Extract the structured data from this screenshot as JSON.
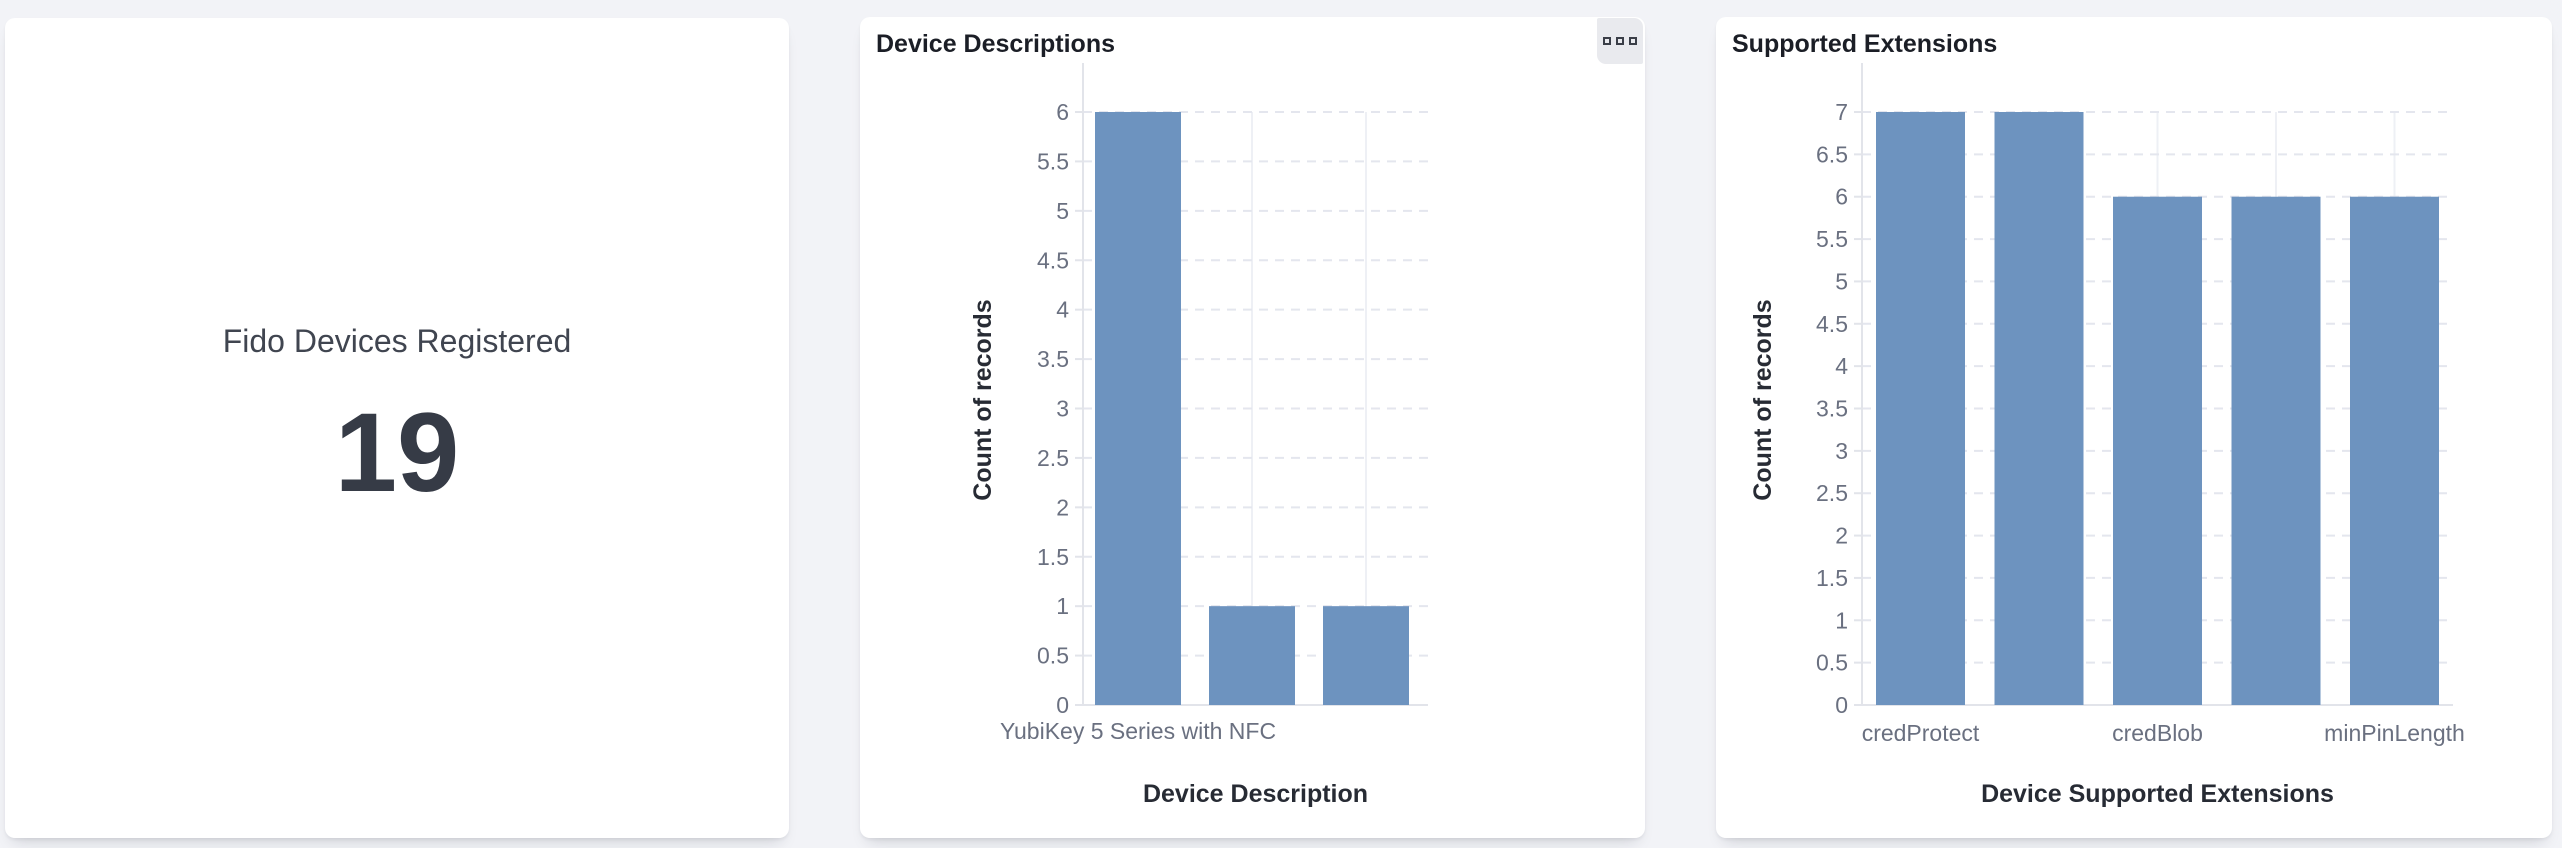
{
  "page": {
    "background_color": "#f2f3f7",
    "card_color": "#ffffff"
  },
  "kpi": {
    "label": "Fido Devices Registered",
    "value": "19"
  },
  "chart_data": [
    {
      "type": "bar",
      "title": "Device Descriptions",
      "categories": [
        "YubiKey 5 Series with NFC",
        "",
        ""
      ],
      "values": [
        6,
        1,
        1
      ],
      "xlabel": "Device Description",
      "ylabel": "Count of records",
      "ylim": [
        0,
        6
      ],
      "tick_step": 0.5,
      "y_ticks": [
        "0",
        "0.5",
        "1",
        "1.5",
        "2",
        "2.5",
        "3",
        "3.5",
        "4",
        "4.5",
        "5",
        "5.5",
        "6"
      ],
      "grid": true,
      "legend": false,
      "bar_color": "#6d93bf",
      "has_menu_button": true
    },
    {
      "type": "bar",
      "title": "Supported Extensions",
      "categories": [
        "credProtect",
        "",
        "credBlob",
        "",
        "minPinLength"
      ],
      "values": [
        7,
        7,
        6,
        6,
        6
      ],
      "xlabel": "Device Supported Extensions",
      "ylabel": "Count of records",
      "ylim": [
        0,
        7
      ],
      "tick_step": 0.5,
      "y_ticks": [
        "0",
        "0.5",
        "1",
        "1.5",
        "2",
        "2.5",
        "3",
        "3.5",
        "4",
        "4.5",
        "5",
        "5.5",
        "6",
        "6.5",
        "7"
      ],
      "grid": true,
      "legend": false,
      "bar_color": "#6d93bf",
      "has_menu_button": false
    }
  ]
}
